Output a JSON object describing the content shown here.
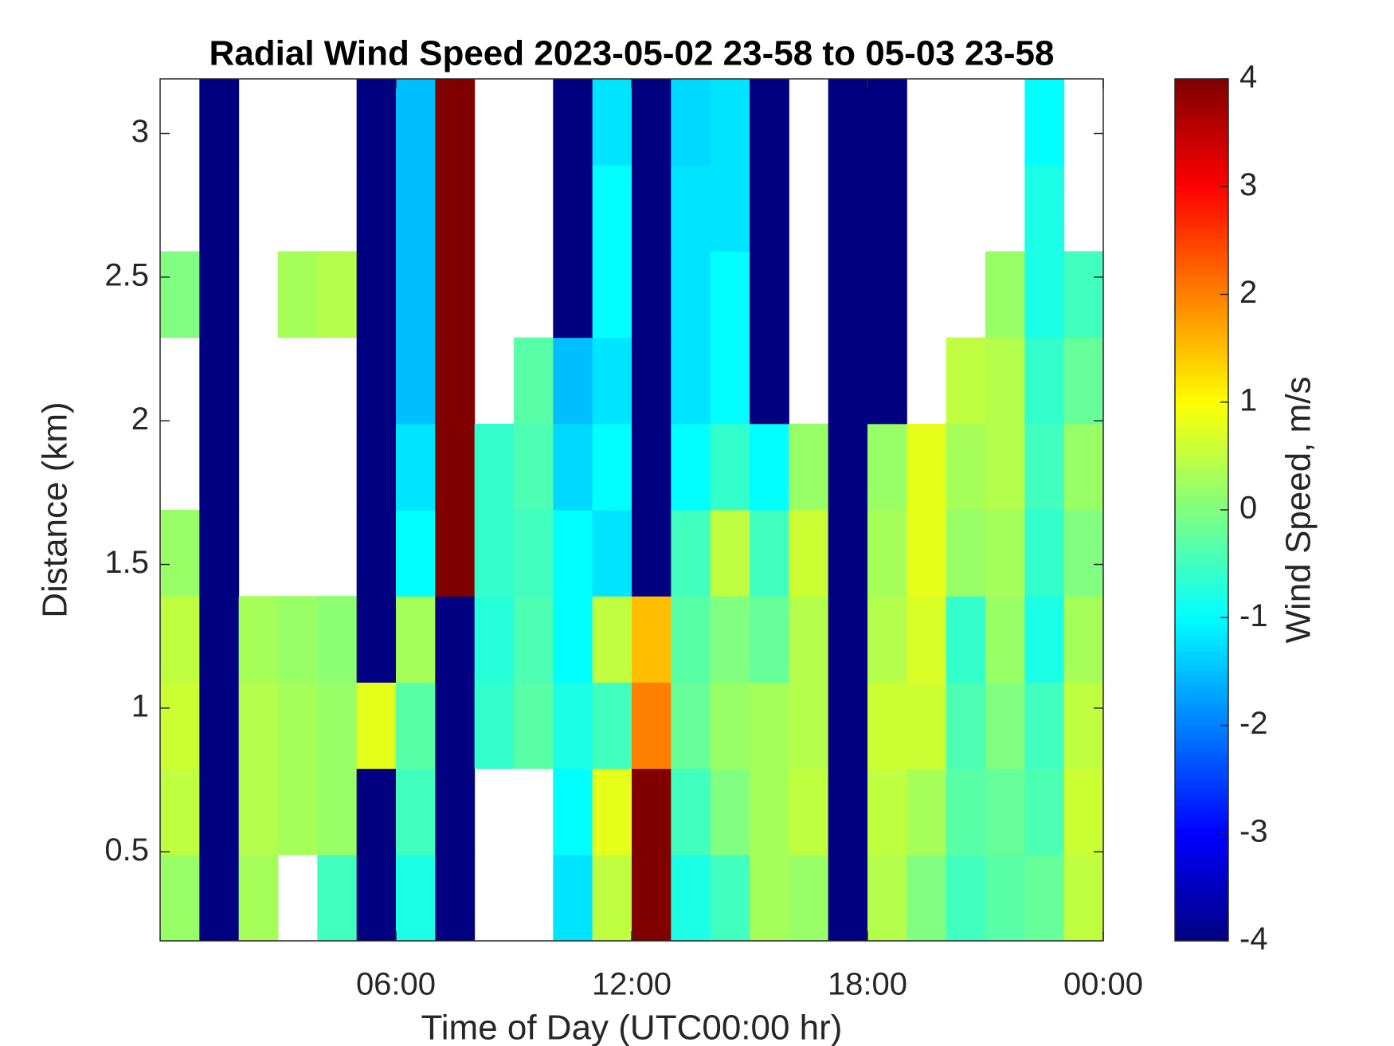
{
  "chart_data": {
    "type": "heatmap",
    "title": "Radial Wind Speed 2023-05-02 23-58 to 05-03 23-58",
    "x_label": "Time of Day (UTC00:00 hr)",
    "y_label": "Distance (km)",
    "colorbar_label": "Wind Speed, m/s",
    "colormap": "jet",
    "xlim": [
      0,
      24
    ],
    "xticks": [
      {
        "value": 6,
        "label": "06:00"
      },
      {
        "value": 12,
        "label": "12:00"
      },
      {
        "value": 18,
        "label": "18:00"
      },
      {
        "value": 24,
        "label": "00:00"
      }
    ],
    "ylim": [
      0.19,
      3.19
    ],
    "yticks": [
      0.5,
      1,
      1.5,
      2,
      2.5,
      3
    ],
    "clim": [
      -4,
      4
    ],
    "cticks": [
      -4,
      -3,
      -2,
      -1,
      0,
      1,
      2,
      3,
      4
    ],
    "x_bins": [
      0,
      1,
      2,
      3,
      4,
      5,
      6,
      7,
      8,
      9,
      10,
      11,
      12,
      13,
      14,
      15,
      16,
      17,
      18,
      19,
      20,
      21,
      22,
      23,
      24
    ],
    "y_bins": [
      0.19,
      0.49,
      0.79,
      1.09,
      1.39,
      1.69,
      1.99,
      2.29,
      2.59,
      2.89,
      3.19
    ],
    "z": [
      [
        0.2,
        -4,
        0.3,
        null,
        -0.5,
        -4,
        -0.8,
        -4,
        null,
        null,
        -1.2,
        0.5,
        4,
        -0.8,
        -0.5,
        0.3,
        0.2,
        -4,
        0.4,
        0,
        -0.5,
        -0.3,
        -0.2,
        0.5
      ],
      [
        0.5,
        -4,
        0.4,
        0.3,
        0.2,
        -4,
        -0.5,
        -4,
        null,
        null,
        -1,
        0.8,
        4,
        -0.5,
        0,
        0.3,
        0.5,
        -4,
        0.5,
        0.3,
        -0.3,
        -0.2,
        -0.4,
        0.6
      ],
      [
        0.6,
        -4,
        0.4,
        0.3,
        0.2,
        0.8,
        -0.3,
        -4,
        -0.6,
        -0.3,
        -0.8,
        -0.5,
        2,
        -0.2,
        0.2,
        0.3,
        0.4,
        -4,
        0.6,
        0.6,
        -0.4,
        0,
        -0.5,
        0.5
      ],
      [
        0.5,
        -4,
        0.3,
        0.2,
        0.1,
        -4,
        0.3,
        -4,
        -0.7,
        -0.4,
        -1,
        0.5,
        1.5,
        -0.3,
        0,
        -0.2,
        0.4,
        -4,
        0.4,
        0.7,
        -0.6,
        0.2,
        -0.8,
        0.3
      ],
      [
        0.2,
        -4,
        null,
        null,
        null,
        -4,
        -1,
        4,
        -0.6,
        -0.5,
        -1,
        -1.2,
        -4,
        -0.5,
        0.5,
        -0.5,
        0.6,
        -4,
        0.3,
        0.8,
        0.2,
        0.3,
        -0.6,
        0
      ],
      [
        null,
        -4,
        null,
        null,
        null,
        -4,
        -1.2,
        4,
        -0.6,
        -0.4,
        -1.3,
        -1,
        -4,
        -1,
        -0.6,
        -1,
        0.2,
        -4,
        0.2,
        0.8,
        0.3,
        0.4,
        -0.5,
        0.2
      ],
      [
        null,
        -4,
        null,
        null,
        null,
        -4,
        -1.5,
        4,
        null,
        -0.3,
        -1.5,
        -1.2,
        -4,
        -1.2,
        -1,
        -4,
        null,
        -4,
        -4,
        null,
        0.5,
        0.4,
        -0.6,
        -0.2
      ],
      [
        0,
        -4,
        null,
        0.3,
        0.4,
        -4,
        -1.5,
        4,
        null,
        null,
        -4,
        -1,
        -4,
        -1.2,
        -1,
        -4,
        null,
        -4,
        -4,
        null,
        null,
        0.2,
        -0.8,
        -0.5
      ],
      [
        null,
        -4,
        null,
        null,
        null,
        -4,
        -1.5,
        4,
        null,
        null,
        -4,
        -1,
        -4,
        -1.2,
        -1.2,
        -4,
        null,
        -4,
        -4,
        null,
        null,
        null,
        -0.8,
        null
      ],
      [
        null,
        -4,
        null,
        null,
        null,
        -4,
        -1.5,
        4,
        null,
        null,
        -4,
        -1.2,
        -4,
        -1.3,
        -1.2,
        -4,
        null,
        -4,
        -4,
        null,
        null,
        null,
        -1,
        null
      ]
    ]
  }
}
